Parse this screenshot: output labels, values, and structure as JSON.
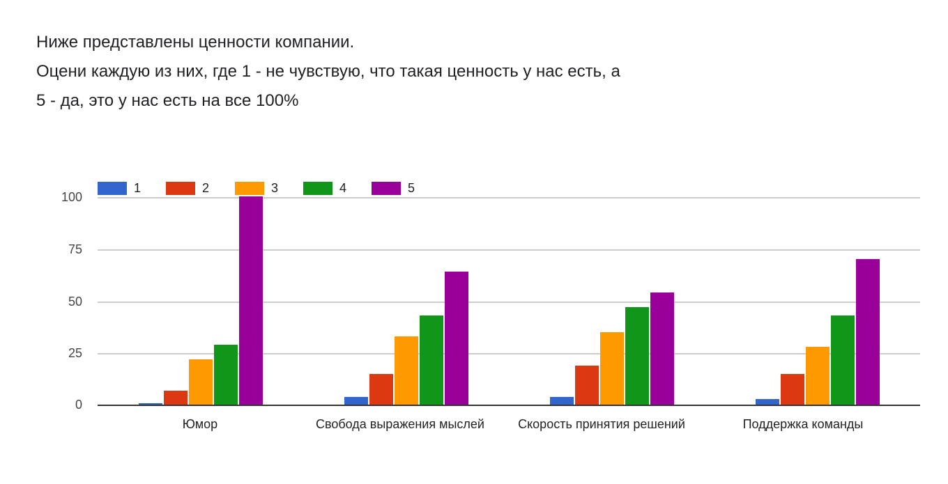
{
  "question": {
    "lines": [
      "Ниже представлены ценности компании.",
      "Оцени каждую из них, где 1 - не чувствую, что такая ценность у нас есть, а",
      "5 - да, это у нас есть на все 100%"
    ]
  },
  "legend": [
    {
      "label": "1",
      "color": "#3366cc"
    },
    {
      "label": "2",
      "color": "#dc3912"
    },
    {
      "label": "3",
      "color": "#ff9900"
    },
    {
      "label": "4",
      "color": "#109618"
    },
    {
      "label": "5",
      "color": "#990099"
    }
  ],
  "yticks": [
    "0",
    "25",
    "50",
    "75",
    "100"
  ],
  "xlabels": [
    "Юмор",
    "Свобода выражения мыслей",
    "Скорость принятия решений",
    "Поддержка команды"
  ],
  "chart_data": {
    "type": "bar",
    "title": "Ниже представлены ценности компании. Оцени каждую из них, где 1 - не чувствую, что такая ценность у нас есть, а 5 - да, это у нас есть на все 100%",
    "categories": [
      "Юмор",
      "Свобода выражения мыслей",
      "Скорость принятия решений",
      "Поддержка команды"
    ],
    "series": [
      {
        "name": "1",
        "color": "#3366cc",
        "values": [
          1,
          4,
          4,
          3
        ]
      },
      {
        "name": "2",
        "color": "#dc3912",
        "values": [
          7,
          15,
          19,
          15
        ]
      },
      {
        "name": "3",
        "color": "#ff9900",
        "values": [
          22,
          33,
          35,
          28
        ]
      },
      {
        "name": "4",
        "color": "#109618",
        "values": [
          29,
          43,
          47,
          43
        ]
      },
      {
        "name": "5",
        "color": "#990099",
        "values": [
          100,
          64,
          54,
          70
        ]
      }
    ],
    "xlabel": "",
    "ylabel": "",
    "ylim": [
      0,
      100
    ],
    "yticks": [
      0,
      25,
      50,
      75,
      100
    ],
    "grid": true,
    "legend_position": "top-left"
  }
}
